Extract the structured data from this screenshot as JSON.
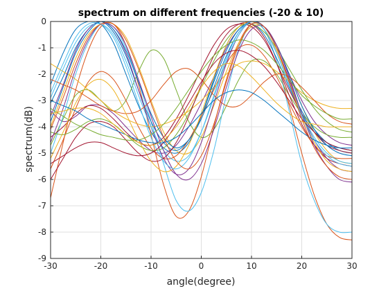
{
  "chart_data": {
    "type": "line",
    "title": "spectrum on different frequencies (-20 & 10)",
    "xlabel": "angle(degree)",
    "ylabel": "spectrum(dB)",
    "xlim": [
      -30,
      30
    ],
    "ylim": [
      -9,
      0
    ],
    "xticks": [
      -30,
      -20,
      -10,
      0,
      10,
      20,
      30
    ],
    "yticks": [
      0,
      -1,
      -2,
      -3,
      -4,
      -5,
      -6,
      -7,
      -8,
      -9
    ],
    "grid": true,
    "legend": "none",
    "colors": [
      "#0072bd",
      "#d95319",
      "#edb120",
      "#7e2f8e",
      "#77ac30",
      "#4dbeee",
      "#a2142f"
    ],
    "x": [
      -30,
      -27.5,
      -25,
      -22.5,
      -20,
      -17.5,
      -15,
      -12.5,
      -10,
      -7.5,
      -5,
      -2.5,
      0,
      2.5,
      5,
      7.5,
      10,
      12.5,
      15,
      17.5,
      20,
      22.5,
      25,
      27.5,
      30
    ],
    "series": [
      {
        "values": [
          -2.4,
          -1.2,
          -0.3,
          0,
          -0.1,
          -0.8,
          -2.0,
          -3.2,
          -4.2,
          -4.8,
          -5.0,
          -4.6,
          -3.6,
          -2.2,
          -0.9,
          -0.2,
          0,
          -0.3,
          -1.2,
          -2.4,
          -3.4,
          -4.1,
          -4.6,
          -4.9,
          -5.0
        ]
      },
      {
        "values": [
          -6.7,
          -4.6,
          -2.6,
          -1.1,
          -0.2,
          -0.1,
          -0.9,
          -2.4,
          -4.3,
          -6.2,
          -7.4,
          -7.2,
          -5.9,
          -4.0,
          -2.2,
          -0.8,
          -0.1,
          -0.3,
          -1.5,
          -3.2,
          -5.0,
          -6.6,
          -7.7,
          -8.2,
          -8.3
        ]
      },
      {
        "values": [
          -4.0,
          -2.7,
          -1.4,
          -0.5,
          -0.1,
          -0.1,
          -0.6,
          -1.7,
          -3.0,
          -4.2,
          -4.9,
          -5.0,
          -4.4,
          -3.2,
          -1.9,
          -0.8,
          -0.2,
          -0.2,
          -0.9,
          -2.0,
          -3.2,
          -4.2,
          -4.9,
          -5.3,
          -5.4
        ]
      },
      {
        "values": [
          -3.4,
          -3.8,
          -3.6,
          -3.2,
          -3.2,
          -3.5,
          -4.0,
          -4.5,
          -4.9,
          -5.0,
          -4.7,
          -4.0,
          -3.1,
          -2.1,
          -1.0,
          -0.3,
          0,
          -0.2,
          -0.9,
          -2.0,
          -3.0,
          -3.8,
          -4.3,
          -4.6,
          -4.7
        ]
      },
      {
        "values": [
          -4.7,
          -3.7,
          -2.8,
          -2.6,
          -3.0,
          -3.4,
          -3.0,
          -1.9,
          -1.1,
          -1.4,
          -2.6,
          -3.8,
          -4.4,
          -4.1,
          -3.2,
          -2.2,
          -1.5,
          -1.5,
          -2.0,
          -2.8,
          -3.5,
          -4.0,
          -4.3,
          -4.4,
          -4.4
        ]
      },
      {
        "values": [
          -5.0,
          -3.6,
          -2.0,
          -0.8,
          -0.1,
          -0.2,
          -1.0,
          -2.3,
          -3.8,
          -5.4,
          -6.8,
          -7.2,
          -6.5,
          -4.9,
          -2.8,
          -1.0,
          -0.1,
          -0.3,
          -1.5,
          -3.4,
          -5.4,
          -6.8,
          -7.7,
          -8.0,
          -8.0
        ]
      },
      {
        "values": [
          -4.4,
          -4.0,
          -3.5,
          -3.2,
          -3.3,
          -3.7,
          -4.2,
          -4.6,
          -4.7,
          -4.4,
          -3.7,
          -2.8,
          -1.8,
          -0.9,
          -0.3,
          -0.1,
          -0.2,
          -0.7,
          -1.6,
          -2.6,
          -3.5,
          -4.2,
          -4.7,
          -4.9,
          -5.0
        ]
      },
      {
        "values": [
          -3.1,
          -2.1,
          -1.0,
          -0.3,
          0,
          -0.4,
          -1.3,
          -2.6,
          -3.8,
          -4.6,
          -4.9,
          -4.5,
          -3.6,
          -2.3,
          -1.1,
          -0.3,
          -0.1,
          -0.5,
          -1.4,
          -2.5,
          -3.5,
          -4.2,
          -4.6,
          -4.8,
          -4.9
        ]
      },
      {
        "values": [
          -5.6,
          -4.5,
          -3.3,
          -2.3,
          -1.9,
          -2.2,
          -3.0,
          -4.0,
          -4.8,
          -5.2,
          -5.1,
          -4.5,
          -3.6,
          -2.6,
          -1.6,
          -1.0,
          -0.9,
          -1.3,
          -2.1,
          -3.1,
          -4.0,
          -4.7,
          -5.1,
          -5.2,
          -5.2
        ]
      },
      {
        "values": [
          -1.6,
          -1.9,
          -2.2,
          -2.6,
          -3.0,
          -3.4,
          -3.7,
          -3.9,
          -4.0,
          -3.9,
          -3.7,
          -3.4,
          -3.0,
          -2.5,
          -2.0,
          -1.6,
          -1.5,
          -1.6,
          -1.9,
          -2.3,
          -2.7,
          -3.0,
          -3.2,
          -3.3,
          -3.3
        ]
      },
      {
        "values": [
          -3.6,
          -2.4,
          -1.1,
          -0.3,
          0,
          -0.3,
          -1.2,
          -2.6,
          -4.0,
          -5.2,
          -5.8,
          -5.6,
          -4.6,
          -3.1,
          -1.6,
          -0.5,
          0,
          -0.2,
          -1.0,
          -2.2,
          -3.5,
          -4.5,
          -5.2,
          -5.6,
          -5.7
        ]
      },
      {
        "values": [
          -4.2,
          -4.3,
          -4.1,
          -3.8,
          -3.7,
          -3.9,
          -4.3,
          -4.7,
          -4.9,
          -4.8,
          -4.3,
          -3.5,
          -2.5,
          -1.5,
          -0.7,
          -0.2,
          -0.1,
          -0.4,
          -1.0,
          -1.8,
          -2.6,
          -3.3,
          -3.8,
          -4.1,
          -4.2
        ]
      },
      {
        "values": [
          -2.9,
          -1.8,
          -0.8,
          -0.2,
          -0.1,
          -0.5,
          -1.5,
          -2.8,
          -4.0,
          -4.9,
          -5.3,
          -5.1,
          -4.2,
          -2.9,
          -1.5,
          -0.5,
          0,
          -0.3,
          -1.1,
          -2.3,
          -3.5,
          -4.4,
          -5.0,
          -5.3,
          -5.4
        ]
      },
      {
        "values": [
          -6.0,
          -5.2,
          -4.4,
          -3.9,
          -3.8,
          -4.0,
          -4.5,
          -5.0,
          -5.3,
          -5.2,
          -4.6,
          -3.6,
          -2.4,
          -1.3,
          -0.5,
          -0.1,
          -0.1,
          -0.6,
          -1.6,
          -2.8,
          -3.9,
          -4.7,
          -5.2,
          -5.4,
          -5.5
        ]
      },
      {
        "values": [
          -3.8,
          -2.5,
          -1.2,
          -0.4,
          0,
          -0.3,
          -1.1,
          -2.3,
          -3.5,
          -4.4,
          -4.8,
          -4.5,
          -3.7,
          -2.5,
          -1.3,
          -0.4,
          0,
          -0.2,
          -0.9,
          -2.0,
          -3.2,
          -4.1,
          -4.7,
          -5.0,
          -5.1
        ]
      },
      {
        "values": [
          -2.2,
          -2.4,
          -2.6,
          -2.9,
          -3.2,
          -3.4,
          -3.5,
          -3.4,
          -3.0,
          -2.4,
          -1.9,
          -1.8,
          -2.2,
          -2.8,
          -3.2,
          -3.2,
          -2.8,
          -2.3,
          -2.0,
          -2.1,
          -2.5,
          -3.0,
          -3.5,
          -3.8,
          -3.9
        ]
      },
      {
        "values": [
          -5.2,
          -4.2,
          -3.1,
          -2.4,
          -2.2,
          -2.6,
          -3.5,
          -4.5,
          -5.3,
          -5.7,
          -5.5,
          -4.7,
          -3.5,
          -2.1,
          -0.9,
          -0.2,
          0,
          -0.3,
          -1.1,
          -2.3,
          -3.6,
          -4.6,
          -5.3,
          -5.6,
          -5.7
        ]
      },
      {
        "values": [
          -4.6,
          -3.3,
          -1.8,
          -0.7,
          -0.1,
          -0.2,
          -0.9,
          -2.2,
          -3.6,
          -4.9,
          -5.8,
          -6.0,
          -5.4,
          -4.1,
          -2.5,
          -1.1,
          -0.3,
          -0.2,
          -0.9,
          -2.1,
          -3.5,
          -4.7,
          -5.5,
          -6.0,
          -6.1
        ]
      },
      {
        "values": [
          -3.3,
          -3.6,
          -3.9,
          -4.1,
          -4.3,
          -4.4,
          -4.5,
          -4.5,
          -4.3,
          -3.9,
          -3.3,
          -2.6,
          -1.9,
          -1.3,
          -0.9,
          -0.7,
          -0.8,
          -1.1,
          -1.6,
          -2.2,
          -2.8,
          -3.2,
          -3.5,
          -3.7,
          -3.7
        ]
      },
      {
        "values": [
          -2.7,
          -1.6,
          -0.6,
          -0.1,
          -0.1,
          -0.6,
          -1.7,
          -3.1,
          -4.4,
          -5.3,
          -5.6,
          -5.2,
          -4.2,
          -2.8,
          -1.4,
          -0.4,
          0,
          -0.3,
          -1.2,
          -2.4,
          -3.6,
          -4.5,
          -5.1,
          -5.4,
          -5.5
        ]
      },
      {
        "values": [
          -5.4,
          -5.1,
          -4.8,
          -4.6,
          -4.6,
          -4.8,
          -5.0,
          -5.1,
          -5.0,
          -4.6,
          -3.9,
          -3.1,
          -2.3,
          -1.6,
          -1.2,
          -1.1,
          -1.3,
          -1.7,
          -2.3,
          -3.0,
          -3.7,
          -4.2,
          -4.6,
          -4.8,
          -4.9
        ]
      },
      {
        "values": [
          -3.0,
          -3.2,
          -3.4,
          -3.7,
          -3.9,
          -4.1,
          -4.3,
          -4.5,
          -4.6,
          -4.6,
          -4.4,
          -4.0,
          -3.5,
          -3.0,
          -2.7,
          -2.6,
          -2.7,
          -3.0,
          -3.4,
          -3.8,
          -4.2,
          -4.5,
          -4.7,
          -4.8,
          -4.8
        ]
      },
      {
        "values": [
          -4.1,
          -2.9,
          -1.6,
          -0.6,
          -0.1,
          -0.1,
          -0.7,
          -1.8,
          -3.1,
          -4.4,
          -5.3,
          -5.6,
          -5.1,
          -3.9,
          -2.3,
          -0.9,
          -0.1,
          -0.2,
          -1.0,
          -2.3,
          -3.7,
          -4.8,
          -5.5,
          -5.9,
          -6.0
        ]
      },
      {
        "values": [
          -3.5,
          -3.4,
          -3.3,
          -3.3,
          -3.5,
          -3.9,
          -4.3,
          -4.6,
          -4.7,
          -4.5,
          -4.0,
          -3.3,
          -2.5,
          -1.9,
          -1.6,
          -1.7,
          -2.1,
          -2.6,
          -3.1,
          -3.5,
          -3.8,
          -3.9,
          -4.0,
          -4.0,
          -4.0
        ]
      }
    ]
  }
}
